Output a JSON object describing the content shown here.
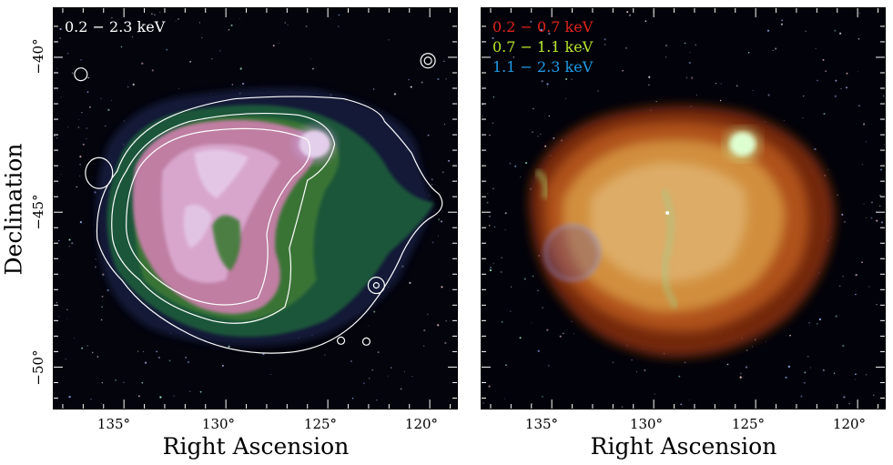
{
  "left_panel": {
    "band_label": "0.2 − 2.3 keV",
    "band_color": "#ffffff",
    "y_ticks": [
      "−40°",
      "−45°",
      "−50°"
    ],
    "x_ticks": [
      "135°",
      "130°",
      "125°",
      "120°"
    ]
  },
  "right_panel": {
    "bands": [
      {
        "label": "0.2 − 0.7 keV",
        "color": "#e0231c"
      },
      {
        "label": "0.7 − 1.1 keV",
        "color": "#b7e62a"
      },
      {
        "label": "1.1 − 2.3 keV",
        "color": "#1e9ce6"
      }
    ],
    "x_ticks": [
      "135°",
      "130°",
      "125°",
      "120°"
    ]
  },
  "axes": {
    "ylabel": "Declination",
    "xlabel_left": "Right Ascension",
    "xlabel_right": "Right Ascension"
  }
}
